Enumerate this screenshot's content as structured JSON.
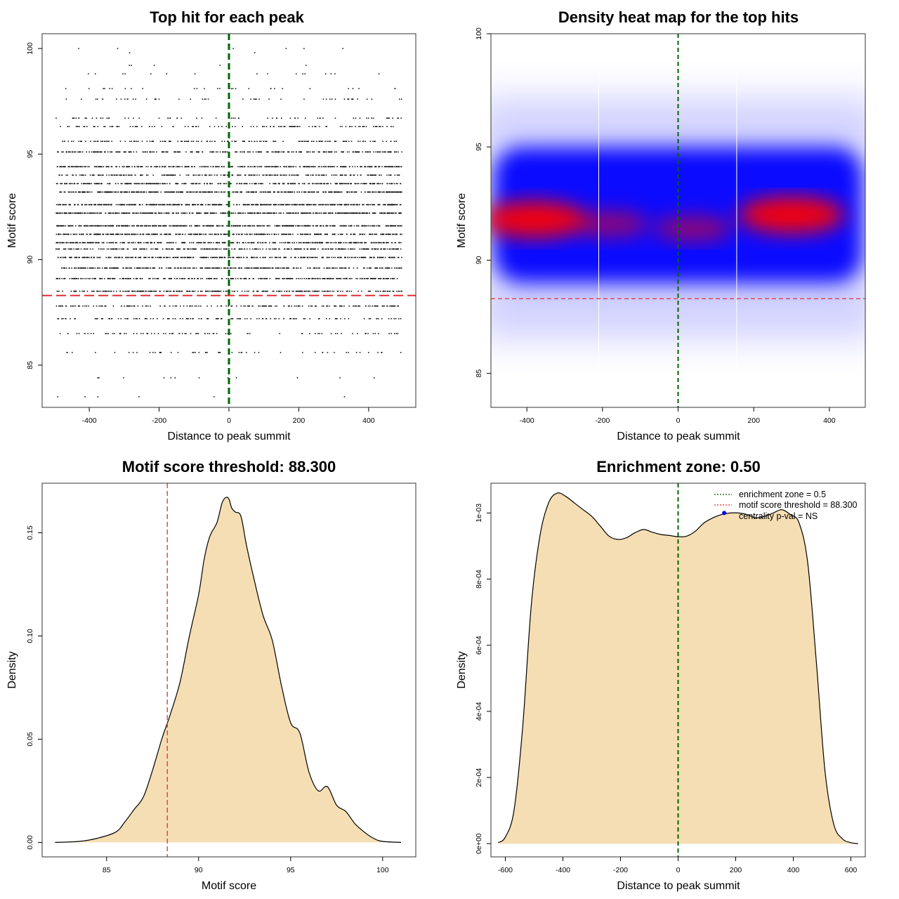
{
  "colors": {
    "threshold": "#e03030",
    "zone": "#006400",
    "fill": "#f5deb3",
    "heat_low": "#ffffff",
    "heat_mid": "#0000ff",
    "heat_high": "#ff0000",
    "centrality_dot": "#0000ff"
  },
  "chart_data": [
    {
      "type": "scatter",
      "title": "Top hit for each peak",
      "xlabel": "Distance to peak summit",
      "ylabel": "Motif score",
      "xlim": [
        -535,
        535
      ],
      "ylim": [
        83,
        100.7
      ],
      "xticks": [
        -400,
        -200,
        0,
        200,
        400
      ],
      "yticks": [
        85,
        90,
        95,
        100
      ],
      "point_count_estimate": 6000,
      "score_levels": [
        100,
        99.8,
        99.2,
        98.8,
        98.1,
        97.6,
        96.7,
        96.3,
        95.6,
        95.1,
        94.4,
        94.0,
        93.6,
        93.2,
        92.6,
        92.2,
        91.6,
        91.2,
        90.8,
        90.5,
        90.1,
        89.6,
        89.1,
        88.5,
        87.8,
        87.2,
        86.5,
        85.6,
        84.4,
        83.5
      ],
      "x_range": [
        -495,
        495
      ],
      "score_distribution": {
        "mode": 91.8,
        "sd": 2.5
      },
      "reference_lines": {
        "vertical_x": 0,
        "horizontal_y": 88.3
      }
    },
    {
      "type": "heatmap",
      "title": "Density heat map for the top hits",
      "xlabel": "Distance to peak summit",
      "ylabel": "Motif score",
      "xlim": [
        -495,
        495
      ],
      "ylim": [
        83.5,
        100
      ],
      "xticks": [
        -400,
        -200,
        0,
        200,
        400
      ],
      "yticks": [
        85,
        90,
        95,
        100
      ],
      "hotspots": [
        {
          "x": -380,
          "y": 91.8,
          "intensity": "high"
        },
        {
          "x": 300,
          "y": 92.0,
          "intensity": "high"
        },
        {
          "x": -180,
          "y": 91.6,
          "intensity": "medium"
        },
        {
          "x": 40,
          "y": 91.4,
          "intensity": "medium"
        }
      ],
      "band_y_range": [
        89,
        95
      ],
      "white_vertical_lines_x": [
        -210,
        155
      ],
      "reference_lines": {
        "vertical_x": 0,
        "horizontal_y": 88.3
      }
    },
    {
      "type": "area",
      "title": "Motif score threshold: 88.300",
      "xlabel": "Motif score",
      "ylabel": "Density",
      "xlim": [
        81.5,
        101.8
      ],
      "ylim": [
        -0.007,
        0.174
      ],
      "xticks": [
        85,
        90,
        95,
        100
      ],
      "yticks": [
        0.0,
        0.05,
        0.1,
        0.15
      ],
      "ytick_labels": [
        "0.00",
        "0.05",
        "0.10",
        "0.15"
      ],
      "x": [
        82.2,
        83.5,
        84.5,
        85.5,
        86,
        86.5,
        87,
        87.5,
        88,
        88.5,
        89,
        89.5,
        90,
        90.3,
        90.6,
        91,
        91.3,
        91.6,
        91.8,
        92,
        92.3,
        92.6,
        93,
        93.5,
        94,
        94.5,
        95,
        95.5,
        96,
        96.5,
        97,
        97.5,
        98,
        98.5,
        99,
        99.5,
        100,
        101
      ],
      "y": [
        0,
        0.0005,
        0.002,
        0.005,
        0.01,
        0.016,
        0.022,
        0.035,
        0.05,
        0.063,
        0.078,
        0.1,
        0.12,
        0.137,
        0.148,
        0.155,
        0.165,
        0.167,
        0.162,
        0.16,
        0.158,
        0.144,
        0.128,
        0.11,
        0.098,
        0.076,
        0.058,
        0.053,
        0.034,
        0.025,
        0.027,
        0.018,
        0.015,
        0.009,
        0.005,
        0.002,
        0.0005,
        0
      ],
      "threshold_line_x": 88.3
    },
    {
      "type": "area",
      "title": "Enrichment zone: 0.50",
      "xlabel": "Distance to peak summit",
      "ylabel": "Density",
      "xlim": [
        -650,
        650
      ],
      "ylim": [
        -4e-05,
        0.00109
      ],
      "xticks": [
        -600,
        -400,
        -200,
        0,
        200,
        400,
        600
      ],
      "yticks": [
        0,
        0.0002,
        0.0004,
        0.0006,
        0.0008,
        0.001
      ],
      "ytick_labels": [
        "0e+00",
        "2e-04",
        "4e-04",
        "6e-04",
        "8e-04",
        "1e-03"
      ],
      "x": [
        -625,
        -600,
        -570,
        -540,
        -510,
        -480,
        -450,
        -420,
        -390,
        -360,
        -330,
        -300,
        -270,
        -240,
        -210,
        -180,
        -150,
        -120,
        -90,
        -60,
        -30,
        0,
        30,
        60,
        90,
        120,
        150,
        180,
        210,
        240,
        270,
        300,
        330,
        360,
        390,
        420,
        450,
        480,
        510,
        540,
        570,
        600,
        625
      ],
      "y": [
        3e-06,
        2e-05,
        0.0001,
        0.00035,
        0.00072,
        0.00093,
        0.00103,
        0.00106,
        0.00105,
        0.00103,
        0.00101,
        0.00099,
        0.00096,
        0.00093,
        0.00092,
        0.000925,
        0.00094,
        0.00095,
        0.000942,
        0.000935,
        0.000932,
        0.000928,
        0.00093,
        0.000945,
        0.00097,
        0.000985,
        0.000995,
        0.001,
        0.001,
        0.000995,
        0.000985,
        0.00099,
        0.001,
        0.00101,
        0.000995,
        0.00097,
        0.00085,
        0.00055,
        0.00022,
        6e-05,
        1.5e-05,
        3e-06,
        0
      ],
      "zone_line_x": 0,
      "legend": {
        "position": "top-right",
        "items": [
          "enrichment zone = 0.5",
          "motif score threshold = 88.300",
          "centrality p-val = NS"
        ]
      },
      "centrality_point": {
        "x": 160,
        "y": 0.001
      }
    }
  ]
}
